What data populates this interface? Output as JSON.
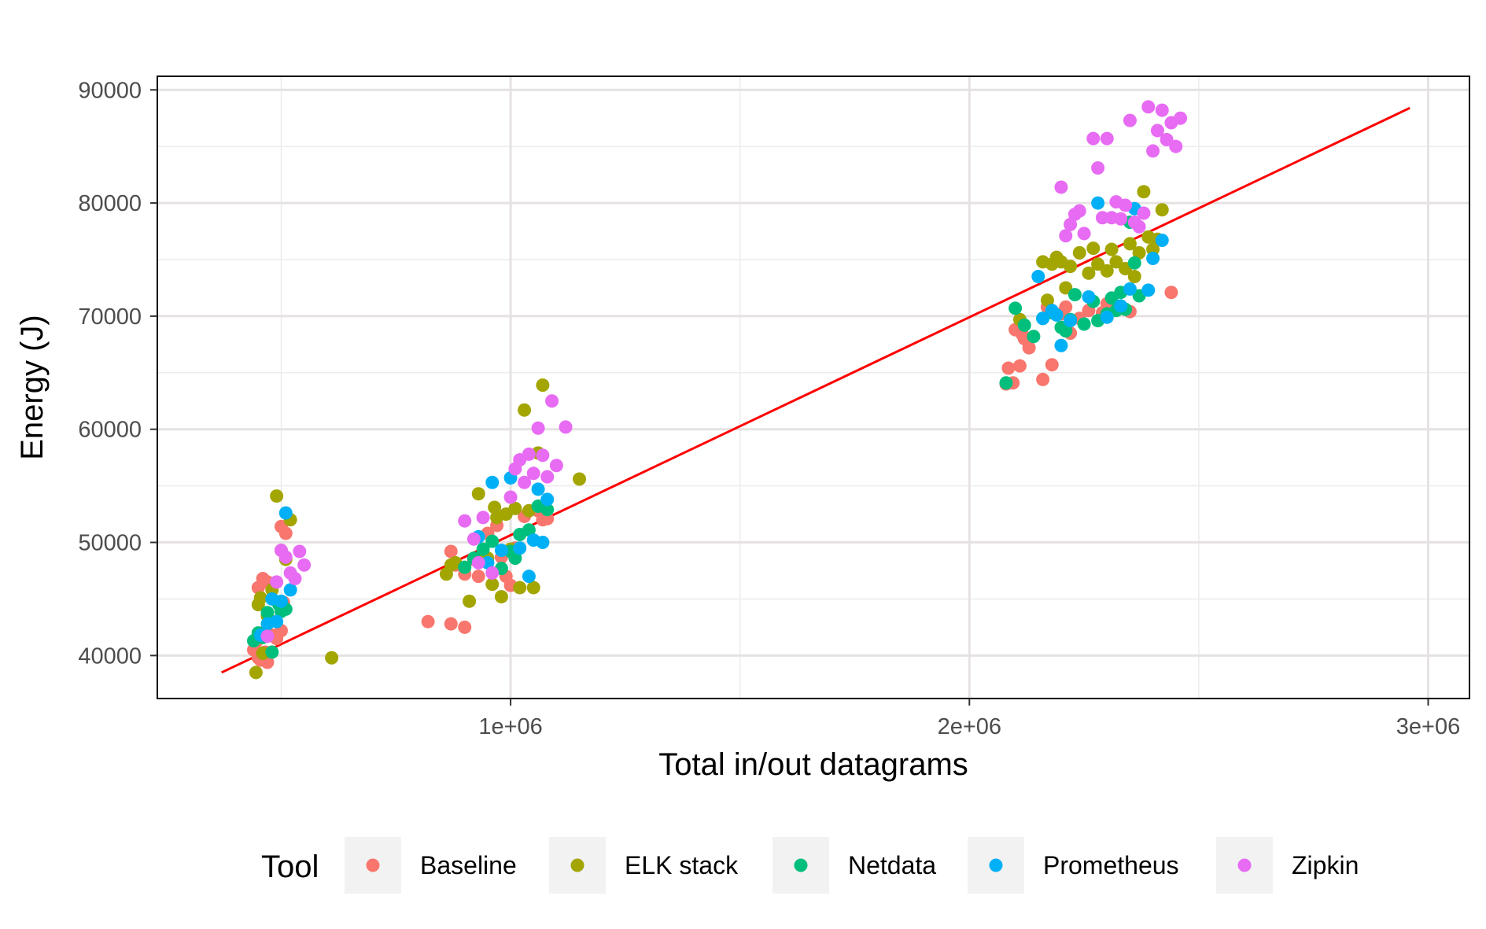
{
  "chart_data": {
    "type": "scatter",
    "xlabel": "Total in/out datagrams",
    "ylabel": "Energy (J)",
    "xlim": [
      230000,
      3090000
    ],
    "ylim": [
      36200,
      91200
    ],
    "x_ticks": [
      1000000,
      2000000,
      3000000
    ],
    "x_tick_labels": [
      "1e+06",
      "2e+06",
      "3e+06"
    ],
    "y_ticks": [
      40000,
      50000,
      60000,
      70000,
      80000,
      90000
    ],
    "y_tick_labels": [
      "40000",
      "50000",
      "60000",
      "70000",
      "80000",
      "90000"
    ],
    "grid": true,
    "legend": {
      "title": "Tool",
      "position": "bottom"
    },
    "series": [
      {
        "name": "Baseline",
        "color": "#F8766D",
        "points": [
          [
            440000,
            40500
          ],
          [
            445000,
            41200
          ],
          [
            450000,
            39800
          ],
          [
            455000,
            39600
          ],
          [
            460000,
            42000
          ],
          [
            465000,
            40300
          ],
          [
            470000,
            39400
          ],
          [
            450000,
            46000
          ],
          [
            460000,
            46800
          ],
          [
            470000,
            46500
          ],
          [
            475000,
            43000
          ],
          [
            480000,
            41800
          ],
          [
            490000,
            41500
          ],
          [
            500000,
            42200
          ],
          [
            505000,
            44700
          ],
          [
            500000,
            51400
          ],
          [
            510000,
            50800
          ],
          [
            820000,
            43000
          ],
          [
            870000,
            42800
          ],
          [
            900000,
            42500
          ],
          [
            870000,
            49200
          ],
          [
            880000,
            48000
          ],
          [
            900000,
            47200
          ],
          [
            920000,
            48500
          ],
          [
            930000,
            47000
          ],
          [
            950000,
            50800
          ],
          [
            970000,
            51500
          ],
          [
            980000,
            48700
          ],
          [
            990000,
            47000
          ],
          [
            1000000,
            46200
          ],
          [
            1010000,
            49500
          ],
          [
            1030000,
            52300
          ],
          [
            1060000,
            52800
          ],
          [
            1070000,
            52000
          ],
          [
            1080000,
            52100
          ],
          [
            2080000,
            64000
          ],
          [
            2085000,
            65400
          ],
          [
            2095000,
            64100
          ],
          [
            2100000,
            68800
          ],
          [
            2110000,
            65600
          ],
          [
            2115000,
            68400
          ],
          [
            2120000,
            68000
          ],
          [
            2130000,
            67200
          ],
          [
            2160000,
            64400
          ],
          [
            2170000,
            70800
          ],
          [
            2180000,
            65700
          ],
          [
            2200000,
            70200
          ],
          [
            2210000,
            70800
          ],
          [
            2220000,
            68500
          ],
          [
            2240000,
            69800
          ],
          [
            2260000,
            70500
          ],
          [
            2290000,
            70300
          ],
          [
            2300000,
            71100
          ],
          [
            2310000,
            71500
          ],
          [
            2330000,
            70800
          ],
          [
            2350000,
            70400
          ],
          [
            2440000,
            72100
          ]
        ]
      },
      {
        "name": "ELK stack",
        "color": "#A3A500",
        "points": [
          [
            445000,
            38500
          ],
          [
            450000,
            44500
          ],
          [
            455000,
            45100
          ],
          [
            460000,
            40200
          ],
          [
            470000,
            43500
          ],
          [
            480000,
            45800
          ],
          [
            490000,
            54100
          ],
          [
            500000,
            49300
          ],
          [
            510000,
            48500
          ],
          [
            520000,
            52000
          ],
          [
            610000,
            39800
          ],
          [
            860000,
            47200
          ],
          [
            870000,
            48000
          ],
          [
            880000,
            48200
          ],
          [
            910000,
            44800
          ],
          [
            930000,
            54300
          ],
          [
            940000,
            49000
          ],
          [
            950000,
            48600
          ],
          [
            960000,
            46300
          ],
          [
            965000,
            53100
          ],
          [
            970000,
            52200
          ],
          [
            980000,
            45200
          ],
          [
            990000,
            52500
          ],
          [
            1000000,
            49400
          ],
          [
            1010000,
            53000
          ],
          [
            1020000,
            46000
          ],
          [
            1030000,
            61700
          ],
          [
            1040000,
            52800
          ],
          [
            1050000,
            46000
          ],
          [
            1060000,
            57900
          ],
          [
            1070000,
            63900
          ],
          [
            1150000,
            55600
          ],
          [
            2110000,
            69700
          ],
          [
            2160000,
            74800
          ],
          [
            2170000,
            71400
          ],
          [
            2180000,
            74600
          ],
          [
            2190000,
            75200
          ],
          [
            2200000,
            74800
          ],
          [
            2210000,
            72500
          ],
          [
            2220000,
            74400
          ],
          [
            2240000,
            75600
          ],
          [
            2260000,
            73800
          ],
          [
            2270000,
            76000
          ],
          [
            2280000,
            74600
          ],
          [
            2300000,
            74000
          ],
          [
            2310000,
            75900
          ],
          [
            2320000,
            74800
          ],
          [
            2340000,
            74200
          ],
          [
            2350000,
            76400
          ],
          [
            2360000,
            73500
          ],
          [
            2370000,
            75600
          ],
          [
            2380000,
            81000
          ],
          [
            2390000,
            77000
          ],
          [
            2400000,
            75900
          ],
          [
            2410000,
            76800
          ],
          [
            2420000,
            79400
          ]
        ]
      },
      {
        "name": "Netdata",
        "color": "#00BF7D",
        "points": [
          [
            440000,
            41300
          ],
          [
            450000,
            42000
          ],
          [
            460000,
            41600
          ],
          [
            470000,
            43800
          ],
          [
            480000,
            40300
          ],
          [
            495000,
            44500
          ],
          [
            500000,
            43900
          ],
          [
            510000,
            44100
          ],
          [
            900000,
            47800
          ],
          [
            920000,
            48600
          ],
          [
            940000,
            49400
          ],
          [
            960000,
            50100
          ],
          [
            980000,
            47700
          ],
          [
            1000000,
            49200
          ],
          [
            1010000,
            48600
          ],
          [
            1020000,
            50700
          ],
          [
            1040000,
            51100
          ],
          [
            1060000,
            53200
          ],
          [
            1080000,
            52900
          ],
          [
            2080000,
            64100
          ],
          [
            2100000,
            70700
          ],
          [
            2120000,
            69200
          ],
          [
            2140000,
            68200
          ],
          [
            2160000,
            69800
          ],
          [
            2180000,
            70300
          ],
          [
            2200000,
            69000
          ],
          [
            2210000,
            68700
          ],
          [
            2220000,
            69700
          ],
          [
            2230000,
            71900
          ],
          [
            2250000,
            69300
          ],
          [
            2270000,
            71300
          ],
          [
            2280000,
            69600
          ],
          [
            2300000,
            70200
          ],
          [
            2310000,
            71600
          ],
          [
            2320000,
            70500
          ],
          [
            2330000,
            72100
          ],
          [
            2340000,
            70600
          ],
          [
            2350000,
            78300
          ],
          [
            2360000,
            74700
          ],
          [
            2370000,
            71800
          ]
        ]
      },
      {
        "name": "Prometheus",
        "color": "#00B0F6",
        "points": [
          [
            455000,
            41800
          ],
          [
            470000,
            42800
          ],
          [
            480000,
            45000
          ],
          [
            490000,
            43000
          ],
          [
            500000,
            44800
          ],
          [
            510000,
            52600
          ],
          [
            520000,
            45800
          ],
          [
            930000,
            50500
          ],
          [
            950000,
            48200
          ],
          [
            960000,
            55300
          ],
          [
            980000,
            49300
          ],
          [
            1000000,
            55700
          ],
          [
            1020000,
            49500
          ],
          [
            1040000,
            47000
          ],
          [
            1050000,
            50200
          ],
          [
            1060000,
            54700
          ],
          [
            1070000,
            50000
          ],
          [
            1080000,
            53800
          ],
          [
            2150000,
            73500
          ],
          [
            2160000,
            69800
          ],
          [
            2180000,
            70500
          ],
          [
            2190000,
            70100
          ],
          [
            2200000,
            67400
          ],
          [
            2220000,
            69600
          ],
          [
            2260000,
            71700
          ],
          [
            2280000,
            80000
          ],
          [
            2300000,
            69900
          ],
          [
            2330000,
            70900
          ],
          [
            2350000,
            72400
          ],
          [
            2360000,
            79500
          ],
          [
            2390000,
            72300
          ],
          [
            2400000,
            75100
          ],
          [
            2420000,
            76700
          ]
        ]
      },
      {
        "name": "Zipkin",
        "color": "#E76BF3",
        "points": [
          [
            470000,
            41700
          ],
          [
            490000,
            46500
          ],
          [
            500000,
            49300
          ],
          [
            510000,
            48700
          ],
          [
            520000,
            47300
          ],
          [
            530000,
            46800
          ],
          [
            540000,
            49200
          ],
          [
            550000,
            48000
          ],
          [
            900000,
            51900
          ],
          [
            920000,
            50300
          ],
          [
            930000,
            48200
          ],
          [
            940000,
            52200
          ],
          [
            960000,
            47300
          ],
          [
            1000000,
            54000
          ],
          [
            1010000,
            56500
          ],
          [
            1020000,
            57300
          ],
          [
            1030000,
            55300
          ],
          [
            1040000,
            57800
          ],
          [
            1050000,
            56100
          ],
          [
            1060000,
            60100
          ],
          [
            1070000,
            57700
          ],
          [
            1080000,
            55800
          ],
          [
            1090000,
            62500
          ],
          [
            1100000,
            56800
          ],
          [
            1120000,
            60200
          ],
          [
            2200000,
            81400
          ],
          [
            2210000,
            77100
          ],
          [
            2220000,
            78100
          ],
          [
            2230000,
            79000
          ],
          [
            2240000,
            79300
          ],
          [
            2250000,
            77300
          ],
          [
            2270000,
            85700
          ],
          [
            2280000,
            83100
          ],
          [
            2290000,
            78700
          ],
          [
            2300000,
            85700
          ],
          [
            2310000,
            78700
          ],
          [
            2320000,
            80100
          ],
          [
            2330000,
            78600
          ],
          [
            2340000,
            79800
          ],
          [
            2350000,
            87300
          ],
          [
            2360000,
            78300
          ],
          [
            2370000,
            77900
          ],
          [
            2380000,
            79100
          ],
          [
            2390000,
            88500
          ],
          [
            2400000,
            84600
          ],
          [
            2410000,
            86400
          ],
          [
            2420000,
            88200
          ],
          [
            2430000,
            85600
          ],
          [
            2440000,
            87100
          ],
          [
            2450000,
            85000
          ],
          [
            2460000,
            87500
          ]
        ]
      }
    ],
    "trend_line": {
      "color": "#FF0000",
      "x": [
        370000,
        2960000
      ],
      "y": [
        38500,
        88400
      ]
    }
  }
}
